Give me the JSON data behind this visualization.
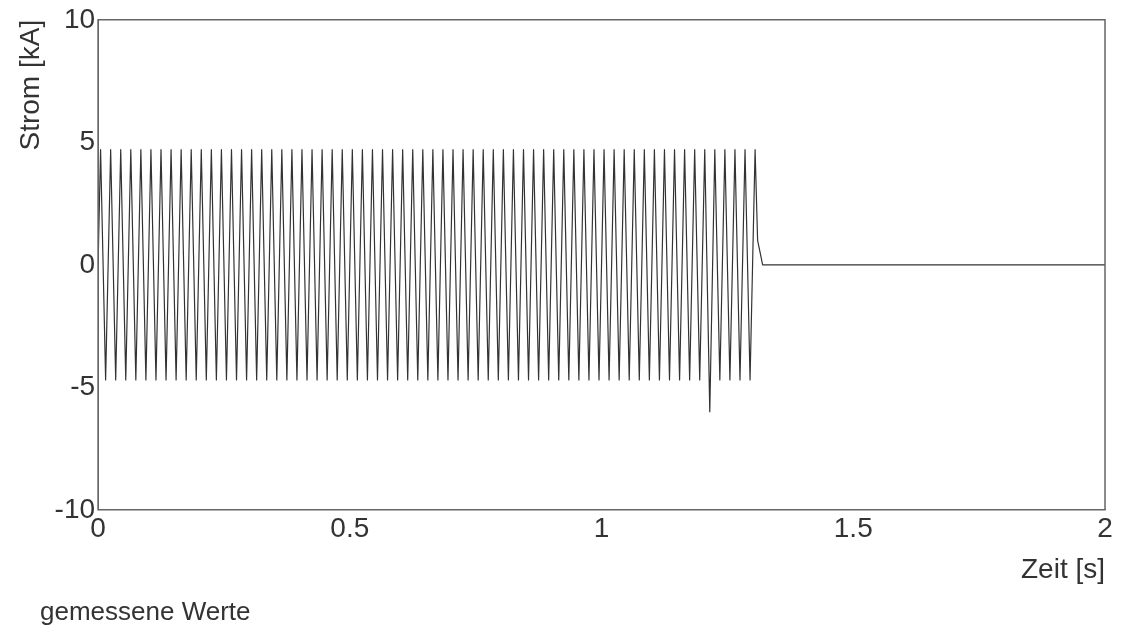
{
  "chart_data": {
    "type": "line",
    "xlabel": "Zeit [s]",
    "ylabel": "Strom [kA]",
    "annotations": [
      "gemessene Werte"
    ],
    "x": [
      0,
      0.005,
      0.015,
      0.025,
      0.035,
      0.045,
      0.055,
      0.065,
      0.075,
      0.085,
      0.095,
      0.105,
      0.115,
      0.125,
      0.135,
      0.145,
      0.155,
      0.165,
      0.175,
      0.185,
      0.195,
      0.205,
      0.215,
      0.225,
      0.235,
      0.245,
      0.255,
      0.265,
      0.275,
      0.285,
      0.295,
      0.305,
      0.315,
      0.325,
      0.335,
      0.345,
      0.355,
      0.365,
      0.375,
      0.385,
      0.395,
      0.405,
      0.415,
      0.425,
      0.435,
      0.445,
      0.455,
      0.465,
      0.475,
      0.485,
      0.495,
      0.505,
      0.515,
      0.525,
      0.535,
      0.545,
      0.555,
      0.565,
      0.575,
      0.585,
      0.595,
      0.605,
      0.615,
      0.625,
      0.635,
      0.645,
      0.655,
      0.665,
      0.675,
      0.685,
      0.695,
      0.705,
      0.715,
      0.725,
      0.735,
      0.745,
      0.755,
      0.765,
      0.775,
      0.785,
      0.795,
      0.805,
      0.815,
      0.825,
      0.835,
      0.845,
      0.855,
      0.865,
      0.875,
      0.885,
      0.895,
      0.905,
      0.915,
      0.925,
      0.935,
      0.945,
      0.955,
      0.965,
      0.975,
      0.985,
      0.995,
      1.005,
      1.015,
      1.025,
      1.035,
      1.045,
      1.055,
      1.065,
      1.075,
      1.085,
      1.095,
      1.105,
      1.115,
      1.125,
      1.135,
      1.145,
      1.155,
      1.165,
      1.175,
      1.185,
      1.195,
      1.205,
      1.215,
      1.225,
      1.235,
      1.245,
      1.255,
      1.265,
      1.275,
      1.285,
      1.295,
      1.305,
      1.31,
      1.32,
      2
    ],
    "values": [
      0,
      4.7,
      -4.7,
      4.7,
      -4.7,
      4.7,
      -4.7,
      4.7,
      -4.7,
      4.7,
      -4.7,
      4.7,
      -4.7,
      4.7,
      -4.7,
      4.7,
      -4.7,
      4.7,
      -4.7,
      4.7,
      -4.7,
      4.7,
      -4.7,
      4.7,
      -4.7,
      4.7,
      -4.7,
      4.7,
      -4.7,
      4.7,
      -4.7,
      4.7,
      -4.7,
      4.7,
      -4.7,
      4.7,
      -4.7,
      4.7,
      -4.7,
      4.7,
      -4.7,
      4.7,
      -4.7,
      4.7,
      -4.7,
      4.7,
      -4.7,
      4.7,
      -4.7,
      4.7,
      -4.7,
      4.7,
      -4.7,
      4.7,
      -4.7,
      4.7,
      -4.7,
      4.7,
      -4.7,
      4.7,
      -4.7,
      4.7,
      -4.7,
      4.7,
      -4.7,
      4.7,
      -4.7,
      4.7,
      -4.7,
      4.7,
      -4.7,
      4.7,
      -4.7,
      4.7,
      -4.7,
      4.7,
      -4.7,
      4.7,
      -4.7,
      4.7,
      -4.7,
      4.7,
      -4.7,
      4.7,
      -4.7,
      4.7,
      -4.7,
      4.7,
      -4.7,
      4.7,
      -4.7,
      4.7,
      -4.7,
      4.7,
      -4.7,
      4.7,
      -4.7,
      4.7,
      -4.7,
      4.7,
      -4.7,
      4.7,
      -4.7,
      4.7,
      -4.7,
      4.7,
      -4.7,
      4.7,
      -4.7,
      4.7,
      -4.7,
      4.7,
      -4.7,
      4.7,
      -4.7,
      4.7,
      -4.7,
      4.7,
      -4.7,
      4.7,
      -4.7,
      4.7,
      -6,
      4.7,
      -4.7,
      4.7,
      -4.7,
      4.7,
      -4.7,
      4.7,
      -4.7,
      4.7,
      1,
      0,
      0
    ],
    "color": "#333333",
    "xlim": [
      0,
      2
    ],
    "ylim": [
      -10,
      10
    ],
    "xticks": [
      0,
      0.5,
      1,
      1.5,
      2
    ],
    "yticks": [
      -10,
      -5,
      0,
      5,
      10
    ],
    "grid": false,
    "legend": false,
    "marker": "none",
    "line_style": "solid"
  }
}
